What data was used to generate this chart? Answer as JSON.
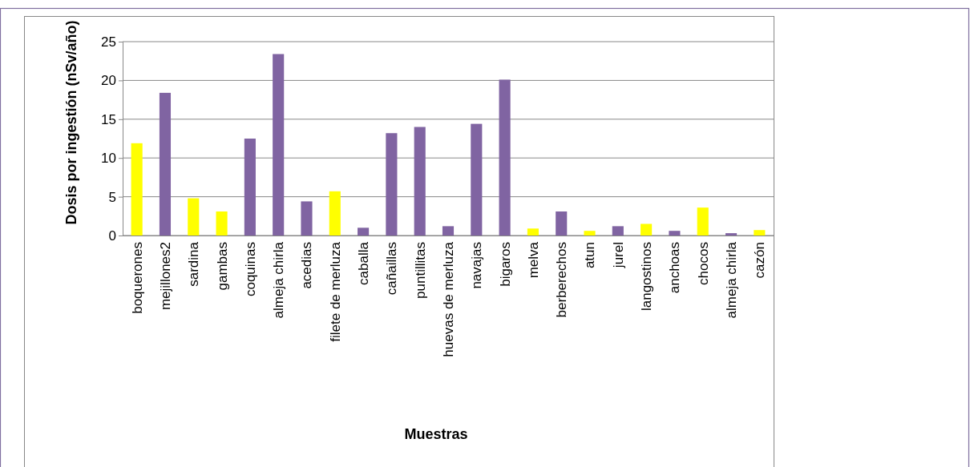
{
  "chart_data": {
    "type": "bar",
    "xlabel": "Muestras",
    "ylabel": "Dosis por ingestión (nSv/año)",
    "categories": [
      "boquerones",
      "mejillones2",
      "sardina",
      "gambas",
      "coquinas",
      "almeja chirla",
      "acedias",
      "filete de merluza",
      "caballa",
      "cañaillas",
      "puntillitas",
      "huevas de merluza",
      "navajas",
      "bigaros",
      "melva",
      "berberechos",
      "atun",
      "jurel",
      "langostinos",
      "anchoas",
      "chocos",
      "almeja chirla",
      "cazón"
    ],
    "values": [
      11.9,
      18.4,
      4.8,
      3.1,
      12.5,
      23.4,
      4.4,
      5.7,
      1.0,
      13.2,
      14.0,
      1.2,
      14.4,
      20.1,
      0.9,
      3.1,
      0.6,
      1.2,
      1.5,
      0.6,
      3.6,
      0.3,
      0.7
    ],
    "colors": [
      "#ffff00",
      "#8064a2",
      "#ffff00",
      "#ffff00",
      "#8064a2",
      "#8064a2",
      "#8064a2",
      "#ffff00",
      "#8064a2",
      "#8064a2",
      "#8064a2",
      "#8064a2",
      "#8064a2",
      "#8064a2",
      "#ffff00",
      "#8064a2",
      "#ffff00",
      "#8064a2",
      "#ffff00",
      "#8064a2",
      "#ffff00",
      "#8064a2",
      "#ffff00"
    ],
    "ylim": [
      0,
      25
    ],
    "yticks": [
      0,
      5,
      10,
      15,
      20,
      25
    ],
    "grid": "y"
  }
}
